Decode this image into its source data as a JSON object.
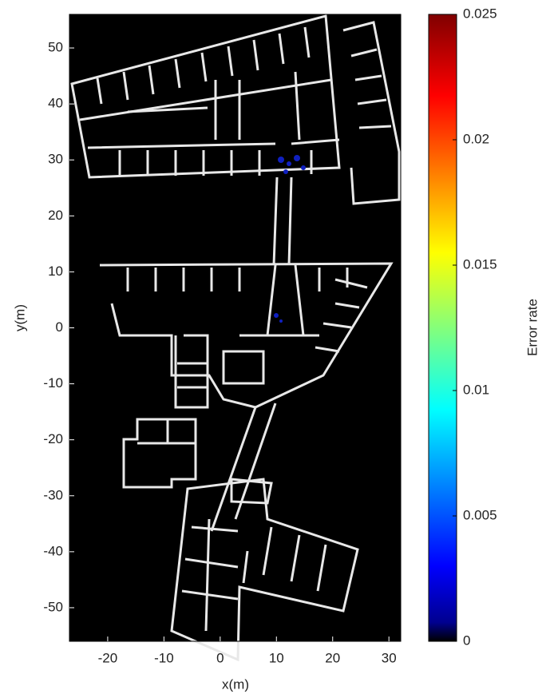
{
  "chart_data": {
    "type": "heatmap",
    "xlabel": "x(m)",
    "ylabel": "y(m)",
    "xlim": [
      -26.8,
      32.1
    ],
    "ylim": [
      -56,
      56
    ],
    "xticks": [
      -20,
      -10,
      0,
      10,
      20,
      30
    ],
    "yticks": [
      -50,
      -40,
      -30,
      -20,
      -10,
      0,
      10,
      20,
      30,
      40,
      50
    ],
    "background": "#000000",
    "colorbar": {
      "label": "Error rate",
      "colormap": "jet",
      "lim": [
        0,
        0.025
      ],
      "ticks": [
        0,
        0.005,
        0.01,
        0.015,
        0.02,
        0.025
      ]
    }
  }
}
